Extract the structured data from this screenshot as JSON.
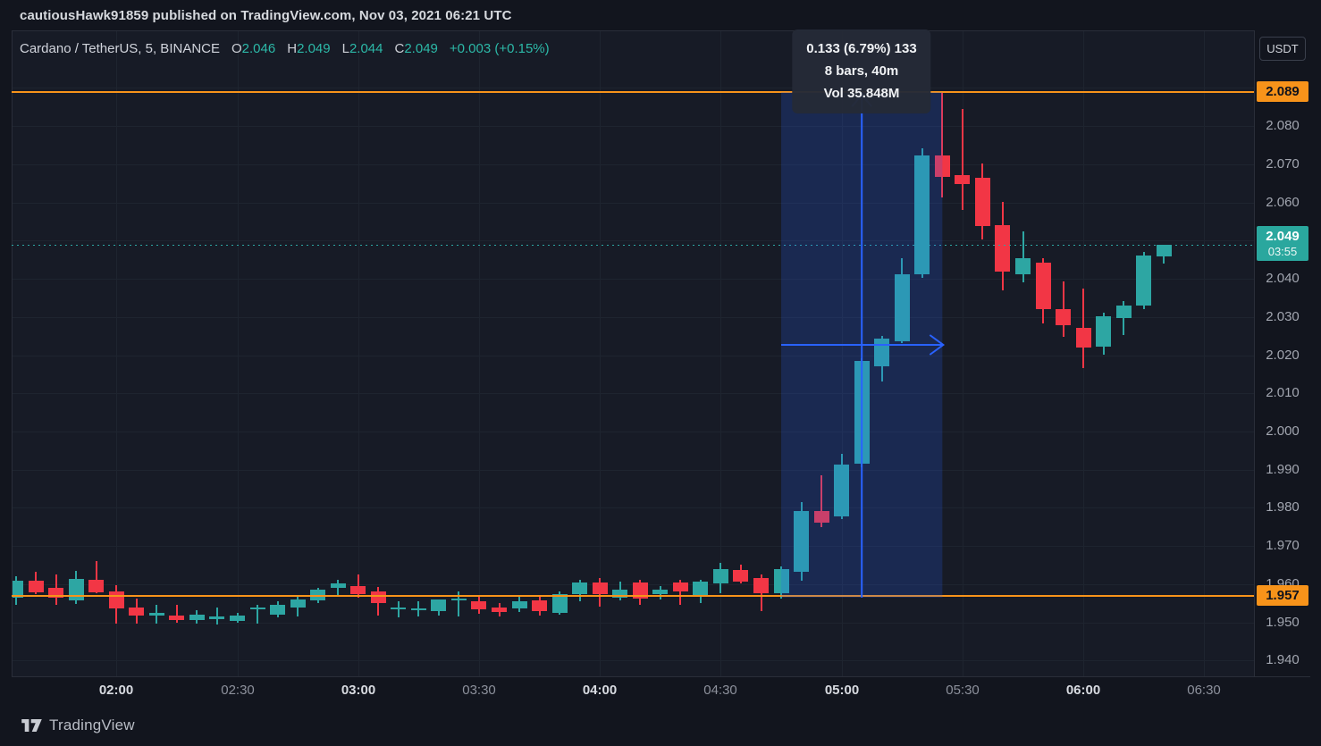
{
  "page": {
    "publish_info": "cautiousHawk91859 published on TradingView.com, Nov 03, 2021 06:21 UTC"
  },
  "legend": {
    "symbol": "Cardano / TetherUS, 5, BINANCE",
    "ohlc": [
      {
        "label": "O",
        "value": "2.046"
      },
      {
        "label": "H",
        "value": "2.049"
      },
      {
        "label": "L",
        "value": "2.044"
      },
      {
        "label": "C",
        "value": "2.049"
      }
    ],
    "change": "+0.003 (+0.15%)"
  },
  "measure_tooltip": {
    "lines": [
      "0.133 (6.79%) 133",
      "8 bars, 40m",
      "Vol 35.848M"
    ]
  },
  "price_axis": {
    "currency_button": "USDT",
    "ticks": [
      "2.080",
      "2.070",
      "2.060",
      "2.040",
      "2.030",
      "2.020",
      "2.010",
      "2.000",
      "1.990",
      "1.980",
      "1.970",
      "1.960",
      "1.950",
      "1.940"
    ],
    "orange_labels": [
      {
        "value": "2.089",
        "price": 2.089
      },
      {
        "value": "1.957",
        "price": 1.957
      }
    ],
    "last_price_label": {
      "price": "2.049",
      "countdown": "03:55"
    }
  },
  "time_axis": {
    "ticks": [
      {
        "label": "02:00",
        "bold": true
      },
      {
        "label": "02:30",
        "bold": false
      },
      {
        "label": "03:00",
        "bold": true
      },
      {
        "label": "03:30",
        "bold": false
      },
      {
        "label": "04:00",
        "bold": true
      },
      {
        "label": "04:30",
        "bold": false
      },
      {
        "label": "05:00",
        "bold": true
      },
      {
        "label": "05:30",
        "bold": false
      },
      {
        "label": "06:00",
        "bold": true
      },
      {
        "label": "06:30",
        "bold": false
      }
    ]
  },
  "watermark": {
    "brand": "TradingView"
  },
  "colors": {
    "up": "#2da6a3",
    "down": "#f23645",
    "orange_line": "#f7931a",
    "measure_blue": "#2962ff",
    "last_price_teal": "#2aa79e",
    "background": "#131722"
  },
  "chart_data": {
    "type": "candlestick",
    "title": "Cardano / TetherUS",
    "interval": "5",
    "exchange": "BINANCE",
    "quote_currency": "USDT",
    "current_bar": {
      "open": 2.046,
      "high": 2.049,
      "low": 2.044,
      "close": 2.049,
      "change": 0.003,
      "change_pct": 0.15
    },
    "y_axis": {
      "min": 1.936,
      "max": 2.093,
      "tick_step": 0.01
    },
    "x_axis": {
      "start_time": "01:35",
      "end_time": "06:20",
      "bar_interval_min": 5
    },
    "price_lines": [
      2.089,
      1.957
    ],
    "last_price": 2.049,
    "measure": {
      "time_from": "04:45",
      "time_to": "05:25",
      "price_from": 1.9565,
      "price_to": 2.0889,
      "change": 0.133,
      "change_pct": 6.79,
      "ticks": 133,
      "bars": 8,
      "duration": "40m",
      "volume": "35.848M"
    },
    "candles": [
      [
        "01:35",
        1.9565,
        1.962,
        1.9545,
        1.961
      ],
      [
        "01:40",
        1.961,
        1.9632,
        1.9573,
        1.958
      ],
      [
        "01:45",
        1.959,
        1.9625,
        1.9545,
        1.9565
      ],
      [
        "01:50",
        1.956,
        1.9635,
        1.9548,
        1.9615
      ],
      [
        "01:55",
        1.9612,
        1.966,
        1.9576,
        1.958
      ],
      [
        "02:00",
        1.958,
        1.9597,
        1.9497,
        1.9535
      ],
      [
        "02:05",
        1.954,
        1.9562,
        1.9497,
        1.952
      ],
      [
        "02:10",
        1.9518,
        1.9545,
        1.9496,
        1.9526
      ],
      [
        "02:15",
        1.9518,
        1.9547,
        1.95,
        1.9506
      ],
      [
        "02:20",
        1.9506,
        1.9532,
        1.9497,
        1.952
      ],
      [
        "02:25",
        1.9508,
        1.954,
        1.9496,
        1.9516
      ],
      [
        "02:30",
        1.9504,
        1.9526,
        1.95,
        1.9518
      ],
      [
        "02:35",
        1.9535,
        1.9546,
        1.9497,
        1.954
      ],
      [
        "02:40",
        1.952,
        1.9556,
        1.9514,
        1.9546
      ],
      [
        "02:45",
        1.9541,
        1.9566,
        1.9515,
        1.9561
      ],
      [
        "02:50",
        1.9558,
        1.959,
        1.955,
        1.9586
      ],
      [
        "02:55",
        1.9592,
        1.9612,
        1.957,
        1.9603
      ],
      [
        "03:00",
        1.9594,
        1.9626,
        1.9566,
        1.9574
      ],
      [
        "03:05",
        1.958,
        1.9592,
        1.9516,
        1.955
      ],
      [
        "03:10",
        1.9536,
        1.9556,
        1.9515,
        1.9539
      ],
      [
        "03:15",
        1.9534,
        1.9556,
        1.9516,
        1.9537
      ],
      [
        "03:20",
        1.953,
        1.9561,
        1.952,
        1.956
      ],
      [
        "03:25",
        1.9561,
        1.9581,
        1.9516,
        1.9563
      ],
      [
        "03:30",
        1.9556,
        1.9566,
        1.9521,
        1.9536
      ],
      [
        "03:35",
        1.9538,
        1.9551,
        1.9517,
        1.9526
      ],
      [
        "03:40",
        1.9538,
        1.9566,
        1.9526,
        1.9556
      ],
      [
        "03:45",
        1.9557,
        1.9571,
        1.9517,
        1.9529
      ],
      [
        "03:50",
        1.9526,
        1.9581,
        1.9521,
        1.9574
      ],
      [
        "03:55",
        1.9574,
        1.9611,
        1.9556,
        1.9604
      ],
      [
        "04:00",
        1.9604,
        1.9616,
        1.9541,
        1.9574
      ],
      [
        "04:05",
        1.9564,
        1.9606,
        1.9556,
        1.9586
      ],
      [
        "04:10",
        1.9604,
        1.9611,
        1.9546,
        1.9561
      ],
      [
        "04:15",
        1.9574,
        1.9596,
        1.9561,
        1.9586
      ],
      [
        "04:20",
        1.9604,
        1.9611,
        1.9546,
        1.9581
      ],
      [
        "04:25",
        1.9566,
        1.9611,
        1.9551,
        1.9606
      ],
      [
        "04:30",
        1.9601,
        1.9656,
        1.9576,
        1.9639
      ],
      [
        "04:35",
        1.9638,
        1.9651,
        1.9601,
        1.9608
      ],
      [
        "04:40",
        1.9616,
        1.9626,
        1.9531,
        1.9576
      ],
      [
        "04:45",
        1.9577,
        1.9646,
        1.9561,
        1.964
      ],
      [
        "04:50",
        1.9631,
        1.9816,
        1.9611,
        1.9791
      ],
      [
        "04:55",
        1.9791,
        1.9886,
        1.9751,
        1.9761
      ],
      [
        "05:00",
        1.9779,
        1.9941,
        1.9771,
        1.9914
      ],
      [
        "05:05",
        1.9915,
        2.0191,
        1.9906,
        2.0184
      ],
      [
        "05:10",
        2.0172,
        2.0251,
        2.0131,
        2.0244
      ],
      [
        "05:15",
        2.0237,
        2.0453,
        2.0231,
        2.0413
      ],
      [
        "05:20",
        2.0411,
        2.0741,
        2.0401,
        2.0722
      ],
      [
        "05:25",
        2.0722,
        2.0886,
        2.0612,
        2.0665
      ],
      [
        "05:30",
        2.0672,
        2.0844,
        2.0579,
        2.0649
      ],
      [
        "05:35",
        2.0665,
        2.0703,
        2.0504,
        2.0539
      ],
      [
        "05:40",
        2.0541,
        2.0602,
        2.0371,
        2.042
      ],
      [
        "05:45",
        2.0411,
        2.0525,
        2.0392,
        2.0453
      ],
      [
        "05:50",
        2.0443,
        2.0453,
        2.0281,
        2.0321
      ],
      [
        "05:55",
        2.0321,
        2.0394,
        2.0249,
        2.0279
      ],
      [
        "06:00",
        2.0272,
        2.0375,
        2.0167,
        2.0221
      ],
      [
        "06:05",
        2.0221,
        2.0311,
        2.02,
        2.0301
      ],
      [
        "06:10",
        2.0298,
        2.0341,
        2.0251,
        2.0331
      ],
      [
        "06:15",
        2.0331,
        2.0471,
        2.0321,
        2.0462
      ],
      [
        "06:20",
        2.046,
        2.049,
        2.044,
        2.049
      ]
    ]
  }
}
